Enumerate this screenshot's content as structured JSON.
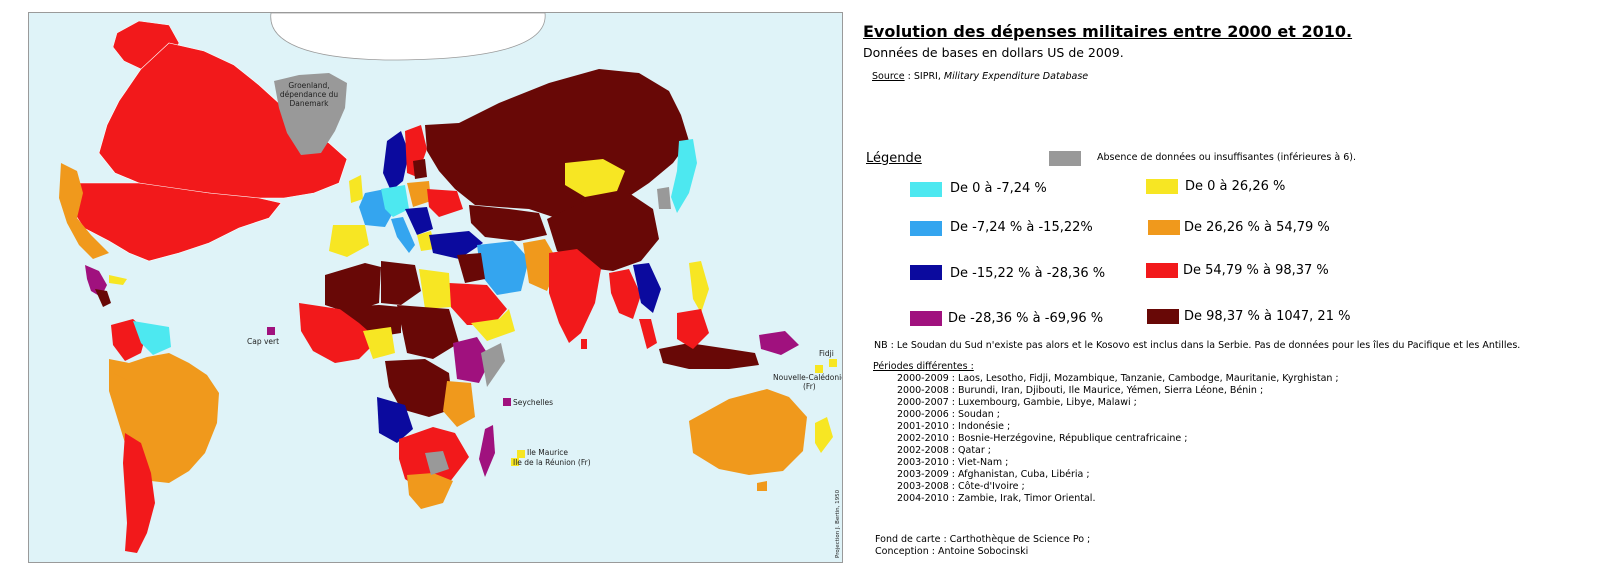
{
  "colors": {
    "ocean": "#dff3f8",
    "no_data": "#999999",
    "cyan": "#4de8f0",
    "light_blue": "#34a5ef",
    "dark_blue": "#0b0a9e",
    "purple": "#a0117e",
    "yellow": "#f7e623",
    "orange": "#f0991c",
    "red": "#f2191b",
    "dark_red": "#680806"
  },
  "header": {
    "title": "Evolution des dépenses militaires entre 2000 et 2010.",
    "subtitle": "Données de bases en dollars US de 2009.",
    "source_label": "Source",
    "source_sep": " : SIPRI, ",
    "source_name": "Military Expenditure Database"
  },
  "legend": {
    "title": "Légende",
    "no_data": "Absence de données ou insuffisantes (inférieures à 6).",
    "items": [
      {
        "label": "De 0 à -7,24 %",
        "color": "#4de8f0"
      },
      {
        "label": "De  -7,24 % à -15,22%",
        "color": "#34a5ef"
      },
      {
        "label": "De -15,22 % à -28,36 %",
        "color": "#0b0a9e"
      },
      {
        "label": "De -28,36 % à -69,96 %",
        "color": "#a0117e"
      },
      {
        "label": "De 0 à 26,26 %",
        "color": "#f7e623"
      },
      {
        "label": "De 26,26 % à 54,79 %",
        "color": "#f0991c"
      },
      {
        "label": "De 54,79 % à 98,37 %",
        "color": "#f2191b"
      },
      {
        "label": "De 98,37 % à 1047, 21 %",
        "color": "#680806"
      }
    ]
  },
  "notes": {
    "nb": "NB : Le Soudan du Sud n'existe pas alors  et le Kosovo est inclus dans la Serbie. Pas de données pour les îles du Pacifique et les Antilles.",
    "periods_title": "Périodes différentes :",
    "periods": [
      "2000-2009 : Laos, Lesotho, Fidji, Mozambique, Tanzanie, Cambodge, Mauritanie, Kyrghistan ;",
      "2000-2008 : Burundi, Iran, Djibouti, Ile Maurice, Yémen,  Sierra Léone, Bénin ;",
      "2000-2007 : Luxembourg, Gambie, Libye, Malawi ;",
      "2000-2006 : Soudan ;",
      "2001-2010 : Indonésie ;",
      "2002-2010 : Bosnie-Herzégovine, République centrafricaine ;",
      "2002-2008 : Qatar ;",
      "2003-2010 : Viet-Nam ;",
      "2003-2009 : Afghanistan, Cuba, Libéria ;",
      "2003-2008 : Côte-d'Ivoire ;",
      "2004-2010 : Zambie, Irak, Timor Oriental."
    ],
    "credits_1": "Fond de carte : Carthothèque de Science Po ;",
    "credits_2": "Conception : Antoine Sobocinski"
  },
  "map_labels": {
    "greenland_1": "Groenland,",
    "greenland_2": "dépendance du",
    "greenland_3": "Danemark",
    "cap_vert": "Cap vert",
    "seychelles": "Seychelles",
    "maurice": "Ile Maurice",
    "reunion": "Ile de la Réunion (Fr)",
    "fidji": "Fidji",
    "nc_1": "Nouvelle-Calédonie",
    "nc_2": "(Fr)",
    "projection": "Projection J. Bertin, 1950"
  }
}
